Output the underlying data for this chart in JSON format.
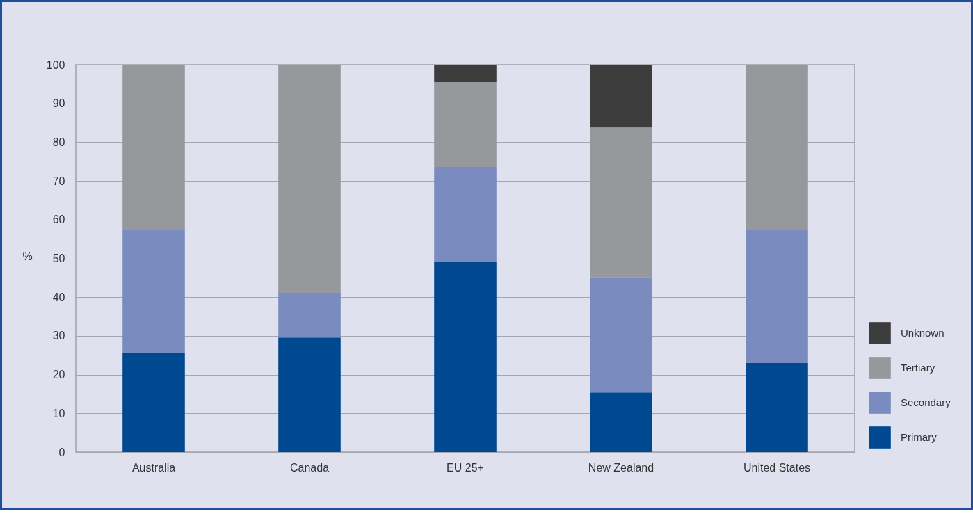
{
  "chart_data": {
    "type": "bar",
    "stacked": true,
    "ylabel": "%",
    "categories": [
      "Australia",
      "Canada",
      "EU 25+",
      "New Zealand",
      "United States"
    ],
    "series": [
      {
        "name": "Primary",
        "color": "#004990",
        "values": [
          25.5,
          29.6,
          49.2,
          15.4,
          23.0
        ]
      },
      {
        "name": "Secondary",
        "color": "#7a8bbf",
        "values": [
          31.8,
          11.5,
          24.4,
          29.8,
          34.3
        ]
      },
      {
        "name": "Tertiary",
        "color": "#97989b",
        "values": [
          42.7,
          58.9,
          21.9,
          38.6,
          42.7
        ]
      },
      {
        "name": "Unknown",
        "color": "#3d3d3d",
        "values": [
          0,
          0,
          4.5,
          16.2,
          0
        ]
      }
    ],
    "ylim": [
      0,
      100
    ],
    "yticks": [
      0,
      10,
      20,
      30,
      40,
      50,
      60,
      70,
      80,
      90,
      100
    ],
    "grid": "y",
    "legend": "bottom right"
  }
}
